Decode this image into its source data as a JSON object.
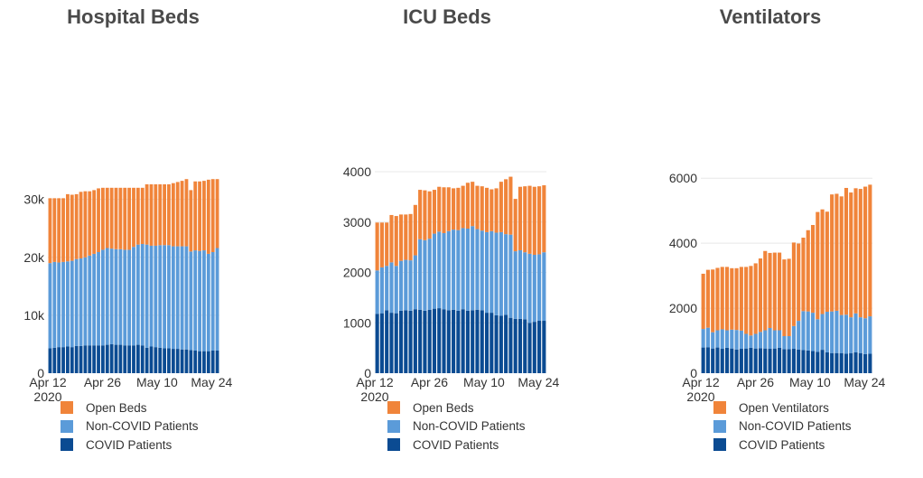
{
  "colors": {
    "open": "#f0843a",
    "noncovid": "#5b9bd9",
    "covid": "#0b4b92",
    "grid": "#e8e8e8",
    "axis_text": "#333333"
  },
  "chart_data": [
    {
      "type": "bar",
      "stacked": true,
      "title": "Hospital Beds",
      "xticks": [
        "Apr 12",
        "Apr 26",
        "May 10",
        "May 24"
      ],
      "xtick_sub": "2020",
      "ylim": [
        0,
        34000
      ],
      "yticks": [
        0,
        10000,
        20000,
        30000
      ],
      "ytick_labels": [
        "0",
        "10k",
        "20k",
        "30k"
      ],
      "grid": true,
      "series": [
        {
          "name": "COVID Patients",
          "color": "#0b4b92",
          "values": [
            4300,
            4400,
            4500,
            4500,
            4600,
            4500,
            4700,
            4700,
            4800,
            4800,
            4800,
            4800,
            4800,
            4900,
            5000,
            4900,
            4900,
            4800,
            4800,
            4800,
            4900,
            4800,
            4400,
            4600,
            4500,
            4400,
            4300,
            4300,
            4200,
            4200,
            4100,
            4100,
            4000,
            3900,
            3800,
            3800,
            3800,
            3900,
            3900
          ]
        },
        {
          "name": "Non-COVID Patients",
          "color": "#5b9bd9",
          "values": [
            14700,
            14800,
            14600,
            14700,
            14700,
            14900,
            15000,
            15100,
            15200,
            15500,
            15800,
            16100,
            16500,
            16700,
            16500,
            16500,
            16500,
            16500,
            16500,
            17000,
            17300,
            17500,
            17800,
            17400,
            17500,
            17700,
            17800,
            17800,
            17700,
            17700,
            17800,
            17800,
            17000,
            17300,
            17300,
            17400,
            16800,
            17000,
            17700
          ]
        },
        {
          "name": "Open Beds",
          "color": "#f0843a",
          "values": [
            11200,
            11000,
            11100,
            11000,
            11600,
            11400,
            11200,
            11500,
            11400,
            11100,
            11000,
            11000,
            10700,
            10400,
            10500,
            10600,
            10600,
            10700,
            10700,
            10200,
            9800,
            9700,
            10400,
            10600,
            10600,
            10500,
            10500,
            10500,
            10900,
            11100,
            11300,
            11600,
            10600,
            11900,
            12000,
            12000,
            12800,
            12600,
            11900
          ]
        }
      ],
      "legend": [
        "Open Beds",
        "Non-COVID Patients",
        "COVID Patients"
      ],
      "legend_position": "bottom"
    },
    {
      "type": "bar",
      "stacked": true,
      "title": "ICU Beds",
      "xticks": [
        "Apr 12",
        "Apr 26",
        "May 10",
        "May 24"
      ],
      "xtick_sub": "2020",
      "ylim": [
        0,
        4000
      ],
      "yticks": [
        0,
        1000,
        2000,
        3000,
        4000
      ],
      "ytick_labels": [
        "0",
        "1000",
        "2000",
        "3000",
        "4000"
      ],
      "grid": true,
      "series": [
        {
          "name": "COVID Patients",
          "color": "#0b4b92",
          "values": [
            1180,
            1190,
            1250,
            1200,
            1190,
            1240,
            1250,
            1240,
            1270,
            1260,
            1240,
            1260,
            1280,
            1290,
            1270,
            1250,
            1260,
            1240,
            1270,
            1240,
            1250,
            1260,
            1250,
            1200,
            1200,
            1150,
            1140,
            1160,
            1100,
            1080,
            1080,
            1070,
            1000,
            1020,
            1040,
            1040
          ]
        },
        {
          "name": "Non-COVID Patients",
          "color": "#5b9bd9",
          "values": [
            860,
            910,
            880,
            1000,
            940,
            990,
            1000,
            1000,
            1070,
            1400,
            1400,
            1410,
            1490,
            1520,
            1510,
            1570,
            1590,
            1600,
            1610,
            1630,
            1670,
            1600,
            1580,
            1600,
            1620,
            1640,
            1660,
            1600,
            1650,
            1340,
            1360,
            1330,
            1370,
            1330,
            1320,
            1360
          ]
        },
        {
          "name": "Open Beds",
          "color": "#f0843a",
          "values": [
            950,
            890,
            860,
            940,
            990,
            920,
            900,
            920,
            1000,
            980,
            990,
            940,
            870,
            890,
            910,
            870,
            820,
            840,
            840,
            910,
            880,
            860,
            880,
            880,
            830,
            880,
            1000,
            1090,
            1150,
            1040,
            1260,
            1310,
            1350,
            1350,
            1350,
            1330
          ]
        }
      ],
      "legend": [
        "Open Beds",
        "Non-COVID Patients",
        "COVID Patients"
      ],
      "legend_position": "bottom"
    },
    {
      "type": "bar",
      "stacked": true,
      "title": "Ventilators",
      "xticks": [
        "Apr 12",
        "Apr 26",
        "May 10",
        "May 24"
      ],
      "xtick_sub": "2020",
      "ylim": [
        0,
        6200
      ],
      "yticks": [
        0,
        2000,
        4000,
        6000
      ],
      "ytick_labels": [
        "0",
        "2000",
        "4000",
        "6000"
      ],
      "grid": true,
      "series": [
        {
          "name": "COVID Patients",
          "color": "#0b4b92",
          "values": [
            790,
            800,
            760,
            790,
            750,
            780,
            760,
            730,
            750,
            760,
            780,
            760,
            770,
            760,
            750,
            760,
            780,
            740,
            740,
            750,
            730,
            710,
            700,
            680,
            660,
            720,
            640,
            620,
            620,
            620,
            600,
            620,
            640,
            620,
            590,
            600
          ]
        },
        {
          "name": "Non-COVID Patients",
          "color": "#5b9bd9",
          "values": [
            570,
            600,
            500,
            530,
            600,
            540,
            580,
            600,
            560,
            450,
            380,
            450,
            500,
            560,
            640,
            560,
            540,
            400,
            400,
            700,
            880,
            1200,
            1200,
            1180,
            1000,
            1100,
            1250,
            1280,
            1300,
            1170,
            1200,
            1100,
            1200,
            1100,
            1100,
            1150
          ]
        },
        {
          "name": "Open Ventilators",
          "color": "#f0843a",
          "values": [
            1700,
            1780,
            1930,
            1920,
            1920,
            1950,
            1890,
            1900,
            1960,
            2060,
            2140,
            2170,
            2260,
            2440,
            2310,
            2390,
            2390,
            2360,
            2380,
            2570,
            2380,
            2260,
            2500,
            2700,
            3300,
            3220,
            3080,
            3600,
            3600,
            3650,
            3900,
            3840,
            3850,
            3950,
            4050,
            4050
          ]
        }
      ],
      "legend": [
        "Open Ventilators",
        "Non-COVID Patients",
        "COVID Patients"
      ],
      "legend_position": "bottom"
    }
  ]
}
